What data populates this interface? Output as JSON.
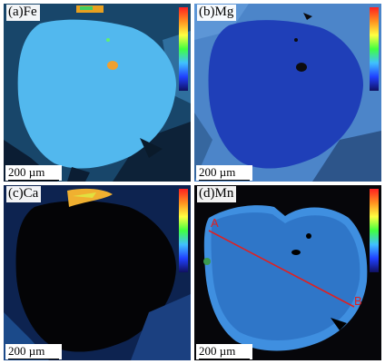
{
  "panels": [
    {
      "label": "(a)Fe",
      "scale": "200 µm"
    },
    {
      "label": "(b)Mg",
      "scale": "200 µm"
    },
    {
      "label": "(c)Ca",
      "scale": "200 µm"
    },
    {
      "label": "(d)Mn",
      "scale": "200 µm"
    }
  ],
  "profile": {
    "start_label": "A",
    "end_label": "B"
  },
  "colors": {
    "fe_grain": "#52b8ee",
    "mg_grain": "#1f3fb8",
    "ca_grain": "#040406",
    "mn_grain": "#3f8fe0",
    "profile_line": "#e02020"
  }
}
